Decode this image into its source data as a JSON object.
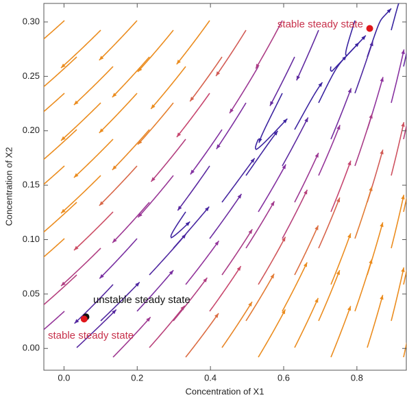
{
  "chart_data": {
    "type": "streamplot",
    "x_label": "Concentration of X1",
    "y_label": "Concentration of X2",
    "xlim": [
      -0.055,
      0.935
    ],
    "ylim": [
      -0.02,
      0.317
    ],
    "xticks": [
      {
        "value": 0,
        "label": "0.0"
      },
      0.2,
      0.4,
      0.6,
      0.8
    ],
    "yticks": [
      {
        "value": 0,
        "label": "0.00"
      },
      0.05,
      {
        "value": 0.1,
        "label": "0.10"
      },
      0.15,
      {
        "value": 0.2,
        "label": "0.20"
      },
      0.25,
      {
        "value": 0.3,
        "label": "0.30"
      }
    ],
    "points": {
      "x": [
        0.835,
        0.06,
        0.055
      ],
      "y": [
        0.294,
        0.029,
        0.027
      ],
      "colors": [
        "#e0161b",
        "#111111",
        "#e0161b"
      ]
    },
    "annotations": [
      {
        "text": "stable steady state",
        "color": "#c7304a"
      },
      {
        "text": "unstable steady state",
        "color": "#111111"
      },
      {
        "text": "stable steady state",
        "color": "#c7304a"
      }
    ]
  }
}
